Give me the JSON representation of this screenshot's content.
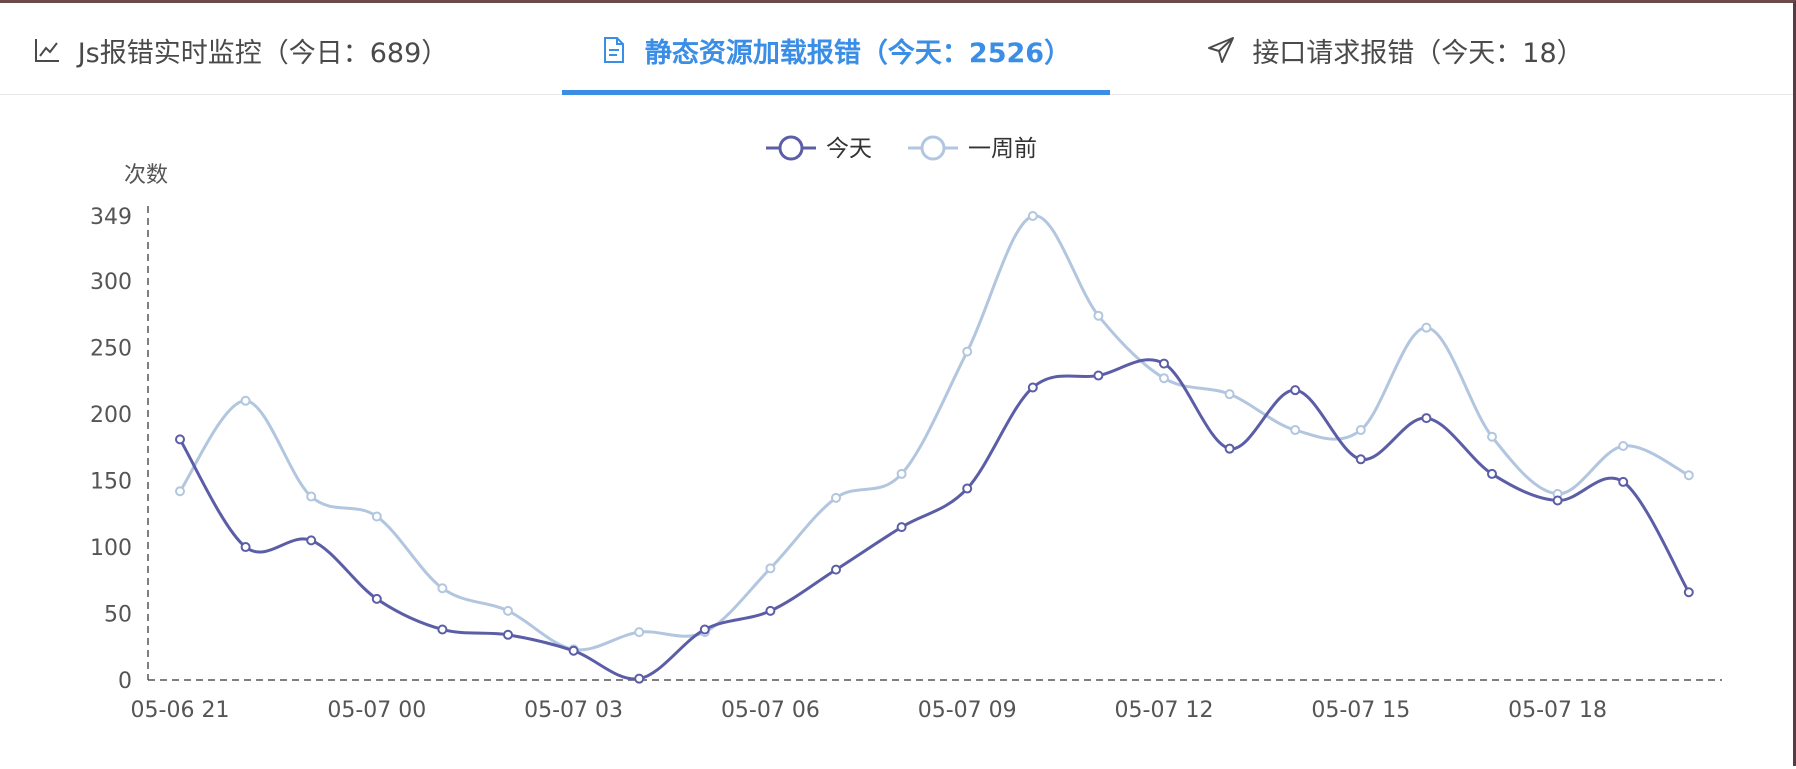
{
  "tabs": [
    {
      "label": "Js报错实时监控（今日：689）",
      "icon": "line-chart-icon",
      "active": false
    },
    {
      "label": "静态资源加载报错（今天：2526）",
      "icon": "document-icon",
      "active": true
    },
    {
      "label": "接口请求报错（今天：18）",
      "icon": "send-icon",
      "active": false
    }
  ],
  "colors": {
    "active": "#3a8ee6",
    "today": "#5b5ea6",
    "week_ago": "#b2c6e0"
  },
  "chart_data": {
    "type": "line",
    "ylabel": "次数",
    "ylim": [
      0,
      349
    ],
    "y_ticks": [
      0,
      50,
      100,
      150,
      200,
      250,
      300,
      349
    ],
    "x_ticks": [
      "05-06 21",
      "05-07 00",
      "05-07 03",
      "05-07 06",
      "05-07 09",
      "05-07 12",
      "05-07 15",
      "05-07 18"
    ],
    "legend_position": "top-center",
    "grid": false,
    "series": [
      {
        "name": "今天",
        "values": [
          181,
          100,
          105,
          61,
          38,
          34,
          22,
          1,
          38,
          52,
          83,
          115,
          144,
          220,
          229,
          238,
          174,
          218,
          166,
          197,
          155,
          135,
          149,
          66
        ]
      },
      {
        "name": "一周前",
        "values": [
          142,
          210,
          138,
          123,
          69,
          52,
          23,
          36,
          36,
          84,
          137,
          155,
          247,
          349,
          274,
          227,
          215,
          188,
          188,
          265,
          183,
          140,
          176,
          154
        ]
      }
    ]
  }
}
